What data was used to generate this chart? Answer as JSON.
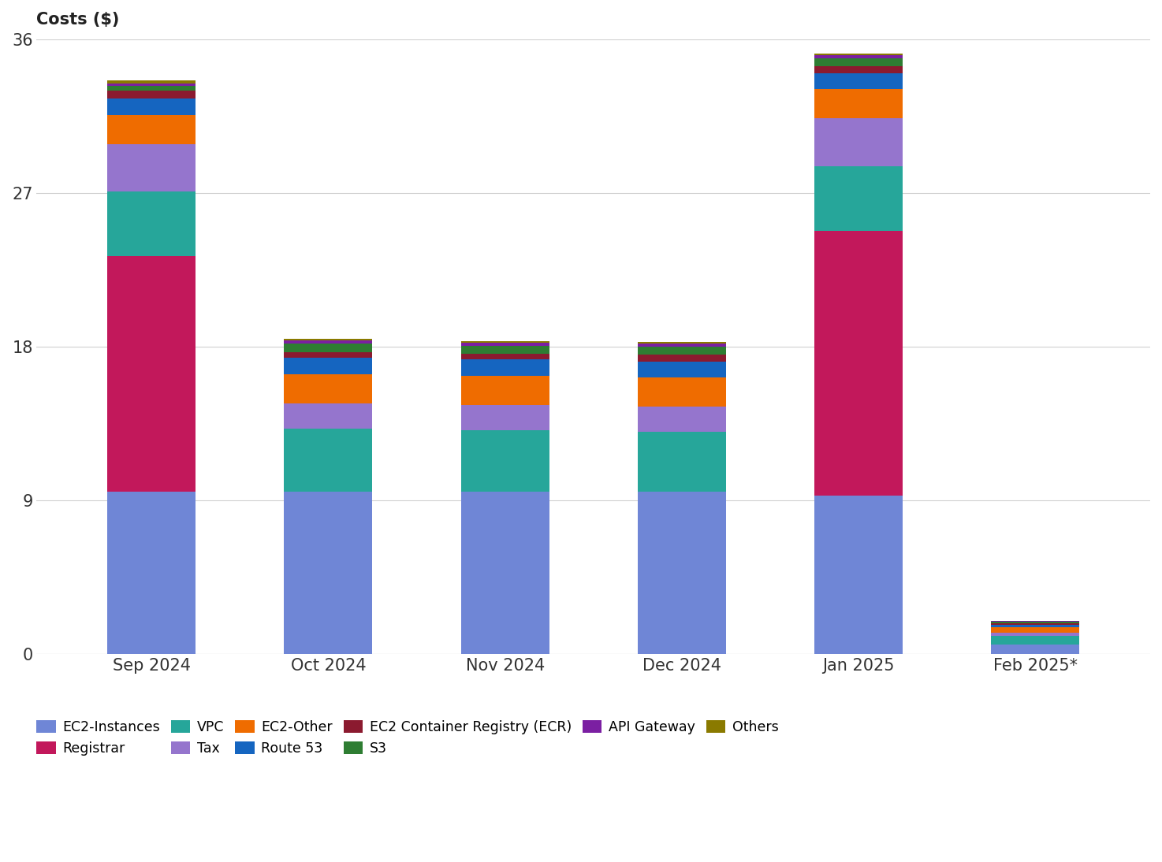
{
  "categories": [
    "Sep 2024",
    "Oct 2024",
    "Nov 2024",
    "Dec 2024",
    "Jan 2025",
    "Feb 2025*"
  ],
  "title": "Costs ($)",
  "ylim": [
    0,
    36
  ],
  "yticks": [
    0,
    9,
    18,
    27,
    36
  ],
  "services": [
    "EC2-Instances",
    "Registrar",
    "VPC",
    "Tax",
    "EC2-Other",
    "Route 53",
    "EC2 Container Registry (ECR)",
    "S3",
    "API Gateway",
    "Others"
  ],
  "colors": [
    "#6f86d6",
    "#c2185b",
    "#26a69a",
    "#9575cd",
    "#ef6c00",
    "#1565c0",
    "#8b1a2f",
    "#2e7d32",
    "#7b1fa2",
    "#8a7a00"
  ],
  "data": {
    "EC2-Instances": [
      9.5,
      9.5,
      9.5,
      9.5,
      9.3,
      0.55
    ],
    "Registrar": [
      13.8,
      0.0,
      0.0,
      0.0,
      15.5,
      0.0
    ],
    "VPC": [
      3.8,
      3.7,
      3.6,
      3.5,
      3.8,
      0.5
    ],
    "Tax": [
      2.8,
      1.5,
      1.5,
      1.5,
      2.8,
      0.22
    ],
    "EC2-Other": [
      1.7,
      1.7,
      1.7,
      1.7,
      1.7,
      0.28
    ],
    "Route 53": [
      0.95,
      0.95,
      0.95,
      0.95,
      0.95,
      0.18
    ],
    "EC2 Container Registry (ECR)": [
      0.45,
      0.35,
      0.35,
      0.4,
      0.4,
      0.08
    ],
    "S3": [
      0.3,
      0.5,
      0.45,
      0.45,
      0.45,
      0.07
    ],
    "API Gateway": [
      0.15,
      0.18,
      0.18,
      0.18,
      0.18,
      0.04
    ],
    "Others": [
      0.18,
      0.1,
      0.1,
      0.1,
      0.1,
      0.02
    ]
  },
  "background_color": "#ffffff",
  "grid_color": "#d0d0d0",
  "legend_row1": [
    "EC2-Instances",
    "Registrar",
    "VPC",
    "Tax",
    "EC2-Other",
    "Route 53"
  ],
  "legend_row2": [
    "EC2 Container Registry (ECR)",
    "S3",
    "API Gateway",
    "Others"
  ]
}
